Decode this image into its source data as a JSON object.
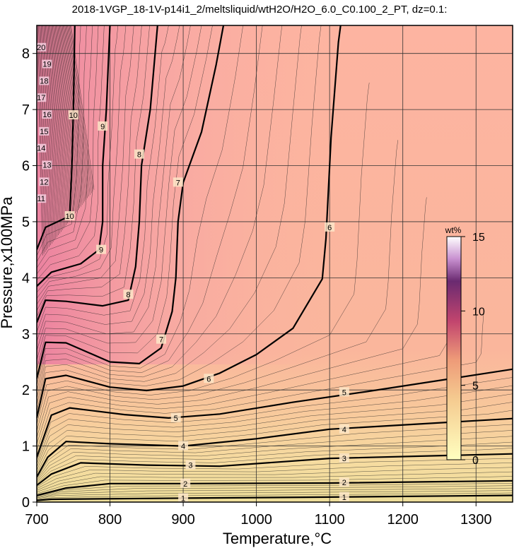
{
  "chart_data": {
    "type": "heatmap",
    "title": "2018-1VGP_18-1V-p14i1_2/meltsliquid/wtH2O/H2O_6.0_C0.100_2_PT, dz=0.1:",
    "xlabel": "Temperature,°C",
    "ylabel": "Pressure,x100MPa",
    "xlim": [
      700,
      1350
    ],
    "ylim": [
      0,
      8.5
    ],
    "xticks": [
      700,
      800,
      900,
      1000,
      1100,
      1200,
      1300
    ],
    "yticks": [
      0,
      1,
      2,
      3,
      4,
      5,
      6,
      7,
      8
    ],
    "grid": true,
    "colorbar": {
      "title": "wt%",
      "range": [
        0,
        15
      ],
      "ticks": [
        0,
        5,
        10,
        15
      ],
      "colors": [
        "#ffffc0",
        "#f5a872",
        "#c2456e",
        "#6a2a70",
        "#ffffff"
      ]
    },
    "contours": [
      {
        "level": 1,
        "label": "1",
        "points": [
          [
            700,
            0.03
          ],
          [
            720,
            0.05
          ],
          [
            900,
            0.07
          ],
          [
            1100,
            0.09
          ],
          [
            1350,
            0.12
          ]
        ],
        "labels_at": [
          [
            900,
            0.07
          ],
          [
            1120,
            0.09
          ]
        ]
      },
      {
        "level": 2,
        "label": "2",
        "points": [
          [
            700,
            0.12
          ],
          [
            740,
            0.25
          ],
          [
            800,
            0.33
          ],
          [
            900,
            0.33
          ],
          [
            1100,
            0.34
          ],
          [
            1350,
            0.38
          ]
        ],
        "labels_at": [
          [
            903,
            0.33
          ],
          [
            1120,
            0.35
          ]
        ]
      },
      {
        "level": 3,
        "label": "3",
        "points": [
          [
            700,
            0.3
          ],
          [
            720,
            0.5
          ],
          [
            760,
            0.7
          ],
          [
            850,
            0.66
          ],
          [
            950,
            0.64
          ],
          [
            1100,
            0.78
          ],
          [
            1350,
            0.86
          ]
        ],
        "labels_at": [
          [
            910,
            0.66
          ],
          [
            1120,
            0.78
          ]
        ]
      },
      {
        "level": 4,
        "label": "4",
        "points": [
          [
            700,
            0.45
          ],
          [
            715,
            0.8
          ],
          [
            740,
            1.08
          ],
          [
            800,
            1.04
          ],
          [
            900,
            1.0
          ],
          [
            1000,
            1.13
          ],
          [
            1100,
            1.3
          ],
          [
            1350,
            1.49
          ]
        ],
        "labels_at": [
          [
            900,
            1.0
          ],
          [
            1120,
            1.3
          ]
        ]
      },
      {
        "level": 5,
        "label": "5",
        "points": [
          [
            700,
            0.8
          ],
          [
            720,
            1.55
          ],
          [
            745,
            1.68
          ],
          [
            820,
            1.56
          ],
          [
            880,
            1.5
          ],
          [
            950,
            1.57
          ],
          [
            1050,
            1.78
          ],
          [
            1150,
            1.97
          ],
          [
            1350,
            2.37
          ]
        ],
        "labels_at": [
          [
            890,
            1.5
          ],
          [
            1120,
            1.96
          ]
        ]
      },
      {
        "level": 6,
        "label": "6",
        "points": [
          [
            700,
            1.5
          ],
          [
            712,
            2.2
          ],
          [
            740,
            2.26
          ],
          [
            800,
            2.05
          ],
          [
            850,
            1.99
          ],
          [
            900,
            2.07
          ],
          [
            950,
            2.3
          ],
          [
            1000,
            2.63
          ],
          [
            1050,
            3.1
          ],
          [
            1090,
            3.98
          ],
          [
            1095,
            4.7
          ],
          [
            1102,
            6.5
          ],
          [
            1112,
            8.2
          ],
          [
            1115,
            8.5
          ]
        ],
        "labels_at": [
          [
            935,
            2.2
          ],
          [
            1100,
            4.9
          ]
        ]
      },
      {
        "level": 7,
        "label": "7",
        "points": [
          [
            700,
            2.2
          ],
          [
            712,
            2.85
          ],
          [
            740,
            2.84
          ],
          [
            800,
            2.5
          ],
          [
            840,
            2.47
          ],
          [
            870,
            2.75
          ],
          [
            885,
            3.4
          ],
          [
            890,
            4.0
          ],
          [
            893,
            5.0
          ],
          [
            900,
            5.7
          ],
          [
            925,
            6.6
          ],
          [
            945,
            7.8
          ],
          [
            955,
            8.5
          ]
        ],
        "labels_at": [
          [
            870,
            2.9
          ],
          [
            893,
            5.7
          ]
        ]
      },
      {
        "level": 8,
        "label": "8",
        "points": [
          [
            700,
            3.2
          ],
          [
            712,
            3.6
          ],
          [
            740,
            3.58
          ],
          [
            790,
            3.5
          ],
          [
            825,
            3.6
          ],
          [
            835,
            4.2
          ],
          [
            840,
            5.0
          ],
          [
            843,
            6.0
          ],
          [
            855,
            7.0
          ],
          [
            865,
            8.5
          ]
        ],
        "labels_at": [
          [
            825,
            3.7
          ],
          [
            840,
            6.2
          ]
        ]
      },
      {
        "level": 9,
        "label": "9",
        "points": [
          [
            700,
            3.85
          ],
          [
            720,
            4.1
          ],
          [
            760,
            4.25
          ],
          [
            785,
            4.5
          ],
          [
            790,
            5.0
          ],
          [
            790,
            6.0
          ],
          [
            795,
            7.0
          ],
          [
            800,
            8.5
          ]
        ],
        "labels_at": [
          [
            788,
            4.5
          ],
          [
            790,
            6.7
          ]
        ]
      },
      {
        "level": 10,
        "label": "10",
        "points": [
          [
            700,
            4.5
          ],
          [
            712,
            4.9
          ],
          [
            745,
            5.1
          ],
          [
            748,
            6.0
          ],
          [
            750,
            7.0
          ],
          [
            752,
            8.5
          ]
        ],
        "labels_at": [
          [
            745,
            5.1
          ],
          [
            750,
            6.9
          ]
        ]
      }
    ],
    "left_edge_labels": [
      "11",
      "12",
      "13",
      "14",
      "15",
      "16",
      "17",
      "18",
      "19",
      "20"
    ]
  }
}
